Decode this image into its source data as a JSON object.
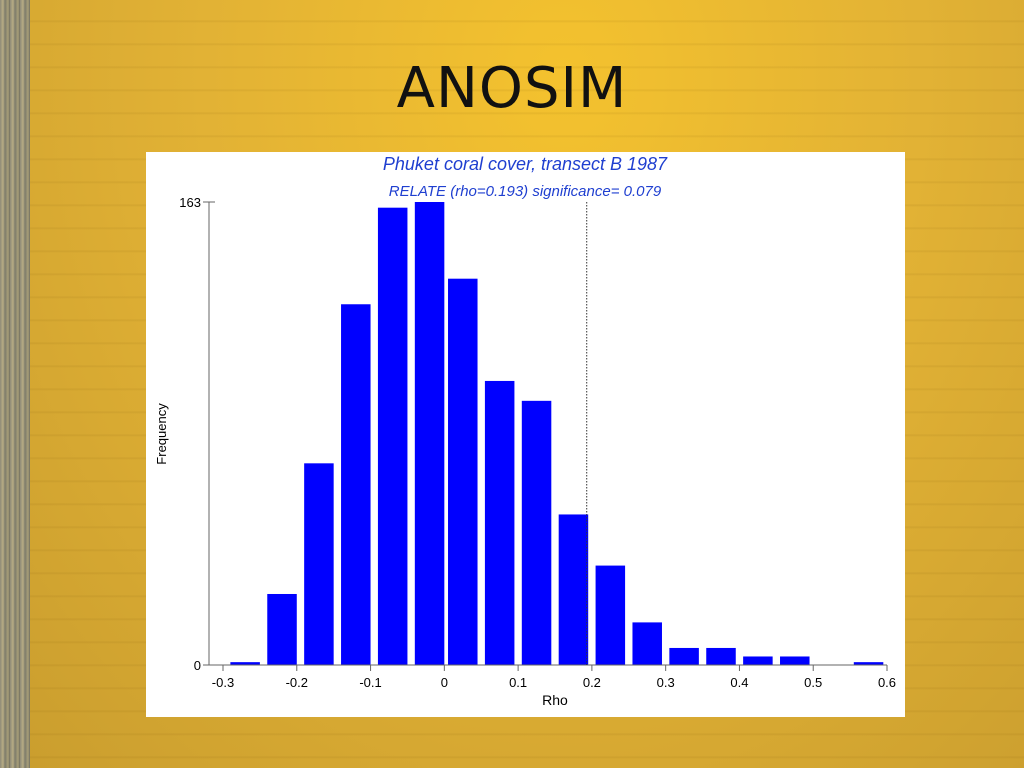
{
  "slide": {
    "title": "ANOSIM"
  },
  "chart_data": {
    "type": "bar",
    "title": "Phuket coral cover, transect B 1987",
    "subtitle": "RELATE (rho=0.193) significance= 0.079",
    "xlabel": "Rho",
    "ylabel": "Frequency",
    "xlim": [
      -0.3,
      0.6
    ],
    "ylim": [
      0,
      163
    ],
    "x_ticks": [
      "-0.3",
      "-0.2",
      "-0.1",
      "0",
      "0.1",
      "0.2",
      "0.3",
      "0.4",
      "0.5",
      "0.6"
    ],
    "y_ticks": [
      "0",
      "163"
    ],
    "bar_width": 0.04,
    "bars": [
      {
        "x": -0.27,
        "value": 1
      },
      {
        "x": -0.22,
        "value": 25
      },
      {
        "x": -0.17,
        "value": 71
      },
      {
        "x": -0.12,
        "value": 127
      },
      {
        "x": -0.07,
        "value": 161
      },
      {
        "x": -0.02,
        "value": 163
      },
      {
        "x": 0.025,
        "value": 136
      },
      {
        "x": 0.075,
        "value": 100
      },
      {
        "x": 0.125,
        "value": 93
      },
      {
        "x": 0.175,
        "value": 53
      },
      {
        "x": 0.225,
        "value": 35
      },
      {
        "x": 0.275,
        "value": 15
      },
      {
        "x": 0.325,
        "value": 6
      },
      {
        "x": 0.375,
        "value": 6
      },
      {
        "x": 0.425,
        "value": 3
      },
      {
        "x": 0.475,
        "value": 3
      },
      {
        "x": 0.575,
        "value": 1
      }
    ],
    "reference_line": {
      "x": 0.193,
      "style": "dotted"
    },
    "bar_color": "#0000ff",
    "grid": false
  }
}
